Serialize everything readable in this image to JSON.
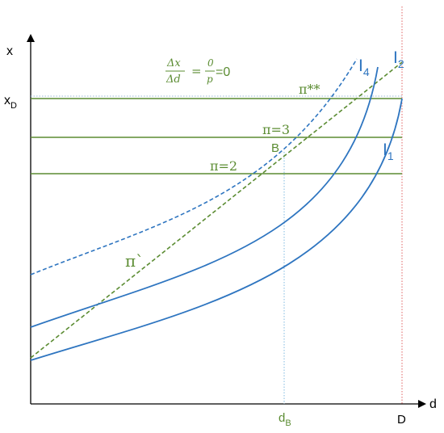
{
  "axes": {
    "y_label": "x",
    "x_label": "d",
    "y_tick": {
      "base": "x",
      "sub": "D"
    },
    "x_ticks": [
      {
        "base": "d",
        "sub": "B"
      },
      {
        "base": "D",
        "sub": ""
      }
    ]
  },
  "levels": {
    "pi_star": "π**",
    "pi3": "π=3",
    "pi2": "π=2"
  },
  "curves": {
    "I1": {
      "base": "I",
      "sub": "1"
    },
    "I2": {
      "base": "I",
      "sub": "2"
    },
    "I4": {
      "base": "I",
      "sub": "4"
    },
    "pi_prime": "π`"
  },
  "point_B": "B",
  "formula": {
    "left_num": "Δx",
    "left_den": "Δd",
    "eq": "=",
    "right_num": "0",
    "right_den": "p",
    "result": "=0"
  },
  "colors": {
    "green": "#5b8c32",
    "blue": "#2e75c0",
    "red": "#e06060",
    "axis": "#000000"
  }
}
